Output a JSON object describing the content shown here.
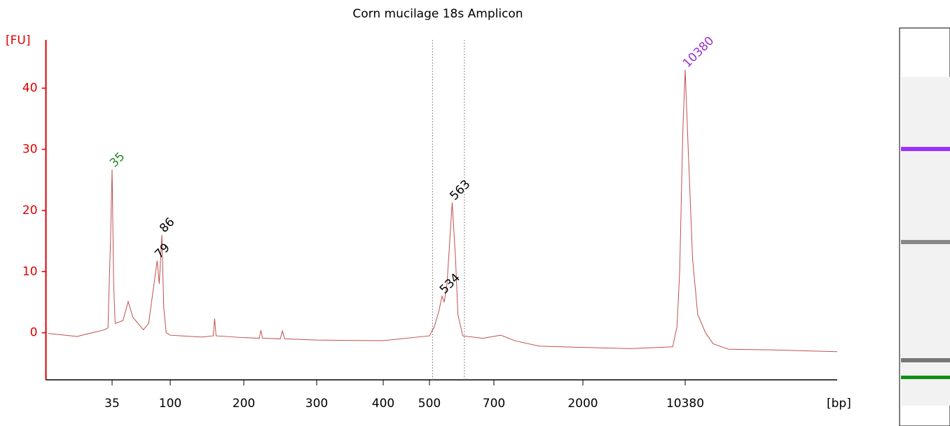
{
  "chart_data": {
    "type": "line",
    "title": "Corn mucilage 18s Amplicon",
    "y_label": "[FU]",
    "x_label": "[bp]",
    "log_x": true,
    "axis_color": "#dd0000",
    "color": "#c0504d",
    "xlim": [
      10.6,
      120000
    ],
    "xticks": [
      35,
      100,
      200,
      300,
      400,
      500,
      700,
      2000,
      10380
    ],
    "ylim": [
      -7.7,
      47.9
    ],
    "yticks": [
      0,
      10,
      20,
      30,
      40
    ],
    "series": [
      {
        "name": "Corn mucilage 18s Amplicon",
        "color": "#c0504d",
        "x": [
          11,
          18.6,
          30.7,
          32.5,
          34,
          35,
          36,
          37,
          42.6,
          46.8,
          51,
          61.6,
          67.7,
          79,
          82,
          86,
          89,
          93,
          100,
          135,
          150,
          152,
          154,
          200,
          218,
          220,
          222,
          245,
          248,
          251,
          300,
          400,
          500,
          513,
          525,
          534,
          540,
          548,
          563,
          573,
          580,
          595,
          660,
          760,
          895,
          1200,
          2000,
          4310,
          8490,
          9100,
          9500,
          10000,
          10380,
          10900,
          11700,
          12700,
          14400,
          16300,
          20900,
          41300,
          120000
        ],
        "values": [
          -0.1,
          -0.6,
          0.5,
          0.8,
          15,
          26.7,
          8,
          1.5,
          2,
          5.1,
          2.5,
          0.5,
          1.5,
          11.8,
          8,
          16,
          4,
          0,
          -0.4,
          -0.7,
          -0.5,
          2.3,
          -0.5,
          -0.8,
          -0.9,
          0.4,
          -0.9,
          -1,
          0.3,
          -1,
          -1.2,
          -1.3,
          -0.5,
          1,
          3.5,
          6,
          5,
          8,
          21.3,
          12,
          3,
          -0.5,
          -0.9,
          -0.4,
          -1.3,
          -2.2,
          -2.4,
          -2.6,
          -2.3,
          1,
          10,
          33,
          43,
          30,
          12,
          3,
          0,
          -1.8,
          -2.7,
          -2.8,
          -3.1
        ]
      }
    ],
    "peaks": [
      {
        "x": 35,
        "y": 26.7,
        "color": "#228b22"
      },
      {
        "x": 79,
        "y": 11.8,
        "color": "#000000"
      },
      {
        "x": 86,
        "y": 16,
        "color": "#000000"
      },
      {
        "x": 534,
        "y": 6,
        "color": "#000000"
      },
      {
        "x": 563,
        "y": 21.3,
        "color": "#000000"
      },
      {
        "x": 10380,
        "y": 43,
        "color": "#9932cc"
      }
    ],
    "region_bounds": [
      508,
      600
    ]
  }
}
